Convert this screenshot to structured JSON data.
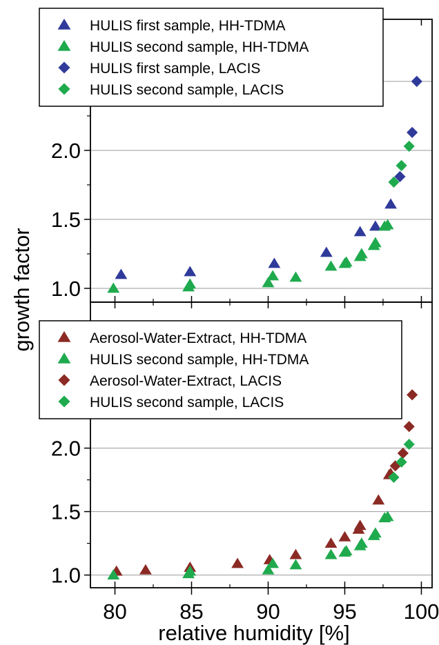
{
  "chart_data": {
    "type": "scatter",
    "xlabel": "relative humidity [%]",
    "ylabel": "growth factor",
    "xlim": [
      78.4,
      100.7
    ],
    "x_ticks": [
      80,
      85,
      90,
      95,
      100
    ],
    "colors": {
      "hulis_first": "#2f3a9a",
      "hulis_second": "#1faa4e",
      "aerosol_water": "#8b2a24"
    },
    "panels": [
      {
        "id": "top",
        "ylim": [
          0.9,
          2.95
        ],
        "y_ticks": [
          "1.0",
          "1.5",
          "2.0",
          "2.5"
        ],
        "legend": {
          "position": "top-left",
          "entries": [
            {
              "label": "HULIS first sample, HH-TDMA",
              "marker": "triangle",
              "color": "#2f3a9a"
            },
            {
              "label": "HULIS second sample, HH-TDMA",
              "marker": "triangle",
              "color": "#1faa4e"
            },
            {
              "label": "HULIS first sample, LACIS",
              "marker": "diamond",
              "color": "#2f3a9a"
            },
            {
              "label": "HULIS second sample, LACIS",
              "marker": "diamond",
              "color": "#1faa4e"
            }
          ]
        },
        "series": [
          {
            "name": "HULIS first sample, HH-TDMA",
            "marker": "triangle",
            "color": "#2f3a9a",
            "points": [
              [
                80.4,
                1.1
              ],
              [
                84.9,
                1.12
              ],
              [
                90.4,
                1.18
              ],
              [
                93.8,
                1.26
              ],
              [
                96.0,
                1.41
              ],
              [
                97.0,
                1.45
              ],
              [
                98.0,
                1.61
              ]
            ]
          },
          {
            "name": "HULIS second sample, HH-TDMA",
            "marker": "triangle",
            "color": "#1faa4e",
            "points": [
              [
                79.9,
                1.0
              ],
              [
                84.8,
                1.01
              ],
              [
                84.9,
                1.03
              ],
              [
                90.0,
                1.04
              ],
              [
                90.3,
                1.09
              ],
              [
                91.8,
                1.08
              ],
              [
                94.1,
                1.16
              ],
              [
                95.0,
                1.18
              ],
              [
                95.1,
                1.19
              ],
              [
                96.0,
                1.23
              ],
              [
                96.1,
                1.25
              ],
              [
                96.9,
                1.31
              ],
              [
                97.0,
                1.33
              ],
              [
                97.6,
                1.45
              ],
              [
                97.8,
                1.46
              ]
            ]
          },
          {
            "name": "HULIS first sample, LACIS",
            "marker": "diamond",
            "color": "#2f3a9a",
            "points": [
              [
                98.6,
                1.81
              ],
              [
                99.4,
                2.13
              ],
              [
                99.7,
                2.5
              ]
            ]
          },
          {
            "name": "HULIS second sample, LACIS",
            "marker": "diamond",
            "color": "#1faa4e",
            "points": [
              [
                98.2,
                1.77
              ],
              [
                98.7,
                1.89
              ],
              [
                99.2,
                2.03
              ]
            ]
          }
        ]
      },
      {
        "id": "bottom",
        "ylim": [
          0.9,
          3.15
        ],
        "y_ticks": [
          "1.0",
          "1.5",
          "2.0"
        ],
        "legend": {
          "position": "top-left",
          "entries": [
            {
              "label": "Aerosol-Water-Extract, HH-TDMA",
              "marker": "triangle",
              "color": "#8b2a24"
            },
            {
              "label": "HULIS second sample, HH-TDMA",
              "marker": "triangle",
              "color": "#1faa4e"
            },
            {
              "label": "Aerosol-Water-Extract, LACIS",
              "marker": "diamond",
              "color": "#8b2a24"
            },
            {
              "label": "HULIS second sample, LACIS",
              "marker": "diamond",
              "color": "#1faa4e"
            }
          ]
        },
        "series": [
          {
            "name": "Aerosol-Water-Extract, HH-TDMA",
            "marker": "triangle",
            "color": "#8b2a24",
            "points": [
              [
                80.1,
                1.03
              ],
              [
                82.0,
                1.04
              ],
              [
                84.9,
                1.06
              ],
              [
                88.0,
                1.09
              ],
              [
                90.1,
                1.12
              ],
              [
                91.8,
                1.16
              ],
              [
                94.1,
                1.25
              ],
              [
                95.0,
                1.3
              ],
              [
                95.9,
                1.36
              ],
              [
                96.0,
                1.39
              ],
              [
                97.2,
                1.59
              ],
              [
                97.9,
                1.79
              ],
              [
                98.0,
                1.8
              ]
            ]
          },
          {
            "name": "HULIS second sample, HH-TDMA",
            "marker": "triangle",
            "color": "#1faa4e",
            "points": [
              [
                79.9,
                1.0
              ],
              [
                84.8,
                1.01
              ],
              [
                84.9,
                1.03
              ],
              [
                90.0,
                1.04
              ],
              [
                90.3,
                1.09
              ],
              [
                91.8,
                1.08
              ],
              [
                94.1,
                1.16
              ],
              [
                95.0,
                1.18
              ],
              [
                95.1,
                1.19
              ],
              [
                96.0,
                1.23
              ],
              [
                96.1,
                1.25
              ],
              [
                96.9,
                1.31
              ],
              [
                97.0,
                1.33
              ],
              [
                97.6,
                1.45
              ],
              [
                97.8,
                1.46
              ]
            ]
          },
          {
            "name": "Aerosol-Water-Extract, LACIS",
            "marker": "diamond",
            "color": "#8b2a24",
            "points": [
              [
                98.3,
                1.86
              ],
              [
                98.8,
                1.96
              ],
              [
                99.2,
                2.17
              ],
              [
                99.4,
                2.42
              ]
            ]
          },
          {
            "name": "HULIS second sample, LACIS",
            "marker": "diamond",
            "color": "#1faa4e",
            "points": [
              [
                98.2,
                1.77
              ],
              [
                98.7,
                1.89
              ],
              [
                99.2,
                2.03
              ]
            ]
          }
        ]
      }
    ]
  }
}
